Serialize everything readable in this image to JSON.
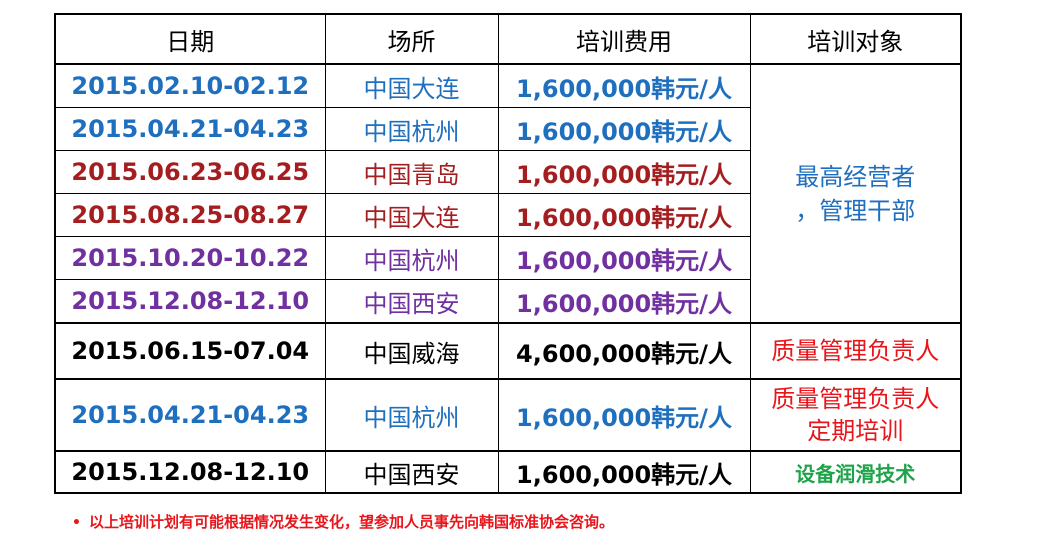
{
  "headers": {
    "date": "日期",
    "place": "场所",
    "fee": "培训费用",
    "target": "培训对象"
  },
  "rows": [
    {
      "date": "2015.02.10-02.12",
      "place": "中国大连",
      "fee": "1,600,000韩元/人",
      "color": "#1F6FBF"
    },
    {
      "date": "2015.04.21-04.23",
      "place": "中国杭州",
      "fee": "1,600,000韩元/人",
      "color": "#1F6FBF"
    },
    {
      "date": "2015.06.23-06.25",
      "place": "中国青岛",
      "fee": "1,600,000韩元/人",
      "color": "#A41E20"
    },
    {
      "date": "2015.08.25-08.27",
      "place": "中国大连",
      "fee": "1,600,000韩元/人",
      "color": "#A41E20"
    },
    {
      "date": "2015.10.20-10.22",
      "place": "中国杭州",
      "fee": "1,600,000韩元/人",
      "color": "#7030A0"
    },
    {
      "date": "2015.12.08-12.10",
      "place": "中国西安",
      "fee": "1,600,000韩元/人",
      "color": "#7030A0"
    },
    {
      "date": "2015.06.15-07.04",
      "place": "中国威海",
      "fee": "4,600,000韩元/人",
      "color": "#000000"
    },
    {
      "date": "2015.04.21-04.23",
      "place": "中国杭州",
      "fee": "1,600,000韩元/人",
      "color": "#1F6FBF"
    },
    {
      "date": "2015.12.08-12.10",
      "place": "中国西安",
      "fee": "1,600,000韩元/人",
      "color": "#000000"
    }
  ],
  "targets": {
    "executives_line1": "最高经营者",
    "executives_line2": "，管理干部",
    "quality_manager": "质量管理负责人",
    "quality_regular_line1": "质量管理负责人",
    "quality_regular_line2": "定期培训",
    "lubrication": "设备润滑技术"
  },
  "note": {
    "bullet": "•",
    "text": "以上培训计划有可能根据情况发生变化，望参加人员事先向韩国标准协会咨询。"
  }
}
